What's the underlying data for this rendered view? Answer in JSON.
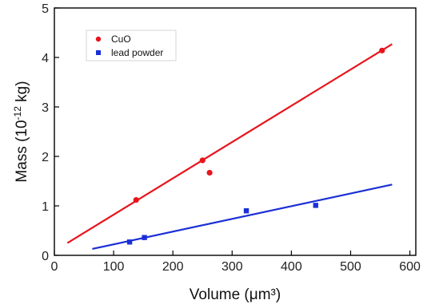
{
  "chart_data": {
    "type": "scatter",
    "title": "",
    "xlabel": "Volume (μm³)",
    "ylabel_main": "Mass (10",
    "ylabel_sup": "-12",
    "ylabel_end": " kg)",
    "xlim": [
      0,
      610
    ],
    "ylim": [
      0,
      5
    ],
    "xticks": [
      0,
      100,
      200,
      300,
      400,
      500,
      600
    ],
    "yticks": [
      0,
      1,
      2,
      3,
      4,
      5
    ],
    "grid": false,
    "legend_position": "top-left",
    "series": [
      {
        "name": "CuO",
        "color": "#e8141b",
        "marker": "circle",
        "points": [
          {
            "x": 138,
            "y": 1.12
          },
          {
            "x": 250,
            "y": 1.92
          },
          {
            "x": 262,
            "y": 1.67
          },
          {
            "x": 553,
            "y": 4.14
          }
        ],
        "fit": {
          "x": [
            22,
            570
          ],
          "y": [
            0.25,
            4.27
          ]
        }
      },
      {
        "name": "lead powder",
        "color": "#1a2fd6",
        "marker": "square",
        "points": [
          {
            "x": 127,
            "y": 0.27
          },
          {
            "x": 152,
            "y": 0.36
          },
          {
            "x": 324,
            "y": 0.9
          },
          {
            "x": 441,
            "y": 1.01
          }
        ],
        "fit": {
          "x": [
            64,
            570
          ],
          "y": [
            0.13,
            1.43
          ]
        }
      }
    ]
  }
}
